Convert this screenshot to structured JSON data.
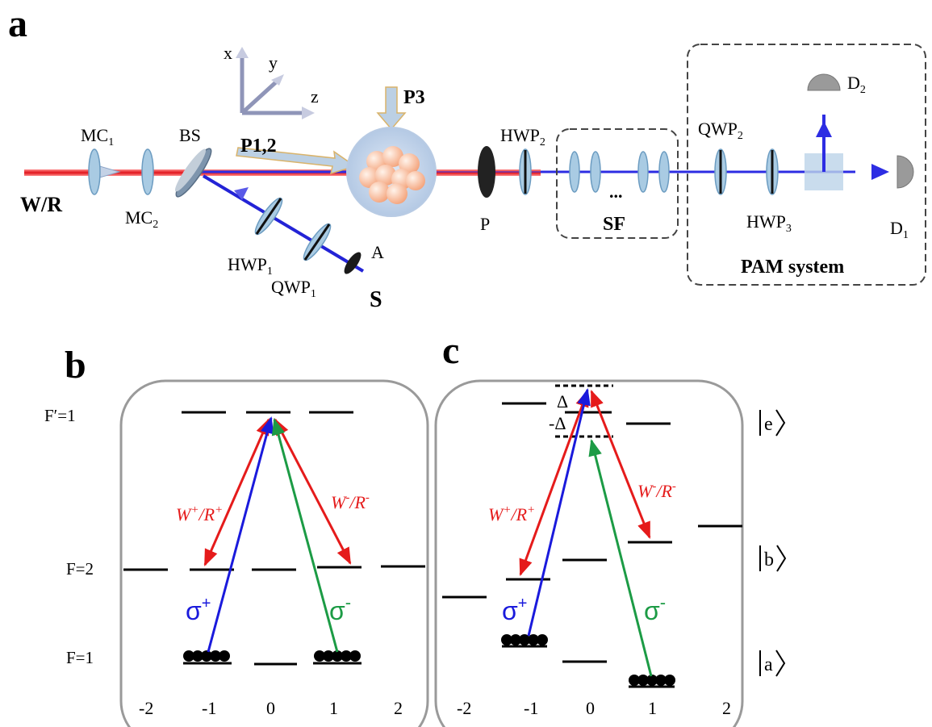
{
  "panels": {
    "a": "a",
    "b": "b",
    "c": "c"
  },
  "setup": {
    "axes": {
      "x": "x",
      "y": "y",
      "z": "z"
    },
    "labels": {
      "wr": "W/R",
      "mc1": "MC",
      "mc1_sub": "1",
      "mc2": "MC",
      "mc2_sub": "2",
      "bs": "BS",
      "p12": "P1,2",
      "p3": "P3",
      "p": "P",
      "hwp2": "HWP",
      "hwp2_sub": "2",
      "sf": "SF",
      "sf_dots": "...",
      "qwp2": "QWP",
      "qwp2_sub": "2",
      "hwp3": "HWP",
      "hwp3_sub": "3",
      "d1": "D",
      "d1_sub": "1",
      "d2": "D",
      "d2_sub": "2",
      "pam": "PAM system",
      "hwp1": "HWP",
      "hwp1_sub": "1",
      "qwp1": "QWP",
      "qwp1_sub": "1",
      "a": "A",
      "s": "S"
    }
  },
  "level_b": {
    "f_prime": "F′=1",
    "f2": "F=2",
    "f1": "F=1",
    "w_plus": "W",
    "w_plus_sup": "+",
    "r_plus": "/R",
    "r_plus_sup": "+",
    "w_minus": "W",
    "w_minus_sup": "-",
    "r_minus": "/R",
    "r_minus_sup": "-",
    "sigma_plus": "σ",
    "sigma_plus_sup": "+",
    "sigma_minus": "σ",
    "sigma_minus_sup": "-",
    "ticks": [
      "-2",
      "-1",
      "0",
      "1",
      "2"
    ]
  },
  "level_c": {
    "delta": "Δ",
    "neg_delta": "-Δ",
    "w_plus": "W",
    "w_plus_sup": "+",
    "r_plus": "/R",
    "r_plus_sup": "+",
    "w_minus": "W",
    "w_minus_sup": "-",
    "r_minus": "/R",
    "r_minus_sup": "-",
    "sigma_plus": "σ",
    "sigma_plus_sup": "+",
    "sigma_minus": "σ",
    "sigma_minus_sup": "-",
    "ticks": [
      "-2",
      "-1",
      "0",
      "1",
      "2"
    ],
    "ket_e": "e",
    "ket_b": "b",
    "ket_a": "a"
  },
  "colors": {
    "red": "#e51b1b",
    "blue": "#1a1adc",
    "green": "#1c9b45",
    "optic": "#a9cbe3",
    "frame": "#9a9a9a"
  }
}
